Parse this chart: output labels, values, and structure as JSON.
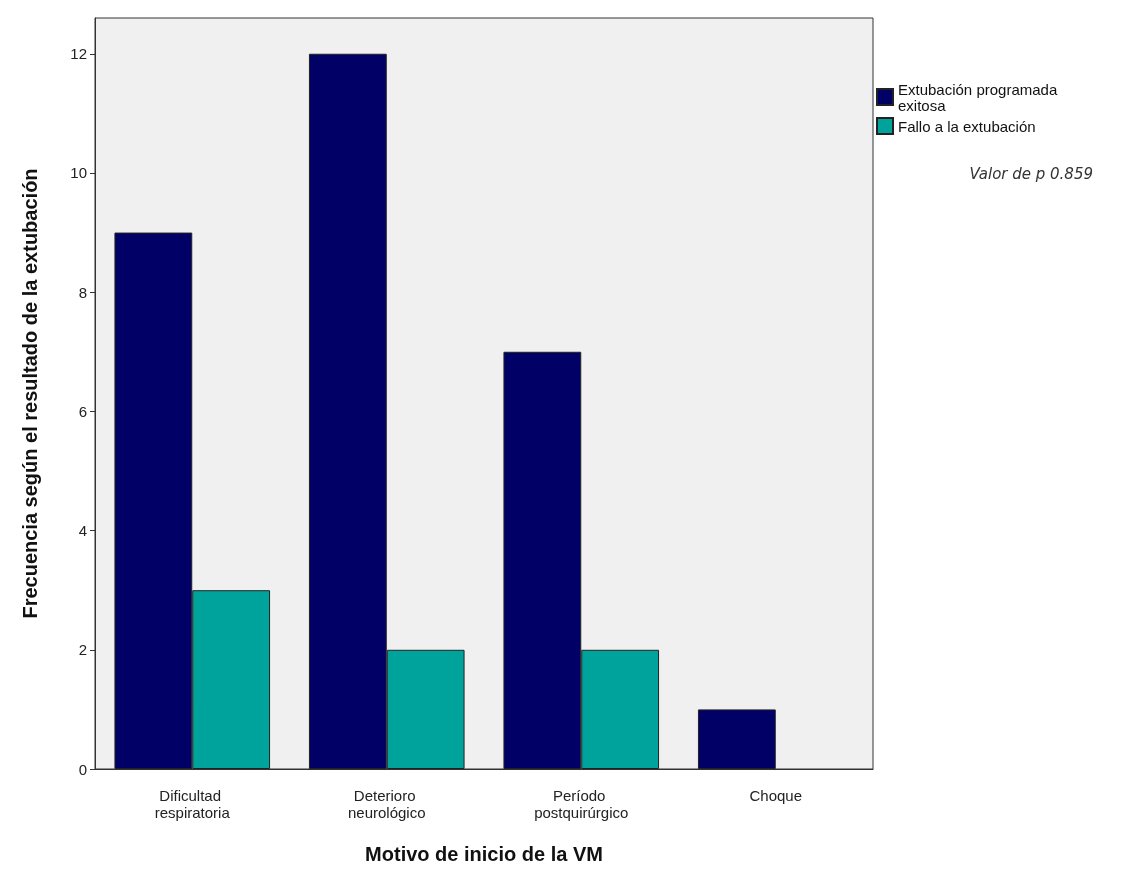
{
  "chart_data": {
    "type": "bar",
    "xlabel": "Motivo de inicio de la VM",
    "ylabel": "Frecuencia según el resultado de la extubación",
    "categories": [
      "Dificultad respiratoria",
      "Deterioro neurológico",
      "Período postquirúrgico",
      "Choque"
    ],
    "series": [
      {
        "name": "Extubación programada exitosa",
        "color": "#000066",
        "values": [
          9,
          12,
          7,
          1
        ]
      },
      {
        "name": "Fallo a la extubación",
        "color": "#00a39c",
        "values": [
          3,
          2,
          2,
          0
        ]
      }
    ],
    "ylim": [
      0,
      12.6
    ],
    "yticks": [
      0,
      2,
      4,
      6,
      8,
      10,
      12
    ],
    "grid": false,
    "legend": "top right",
    "annotations": [
      "Valor de p 0.859"
    ]
  }
}
